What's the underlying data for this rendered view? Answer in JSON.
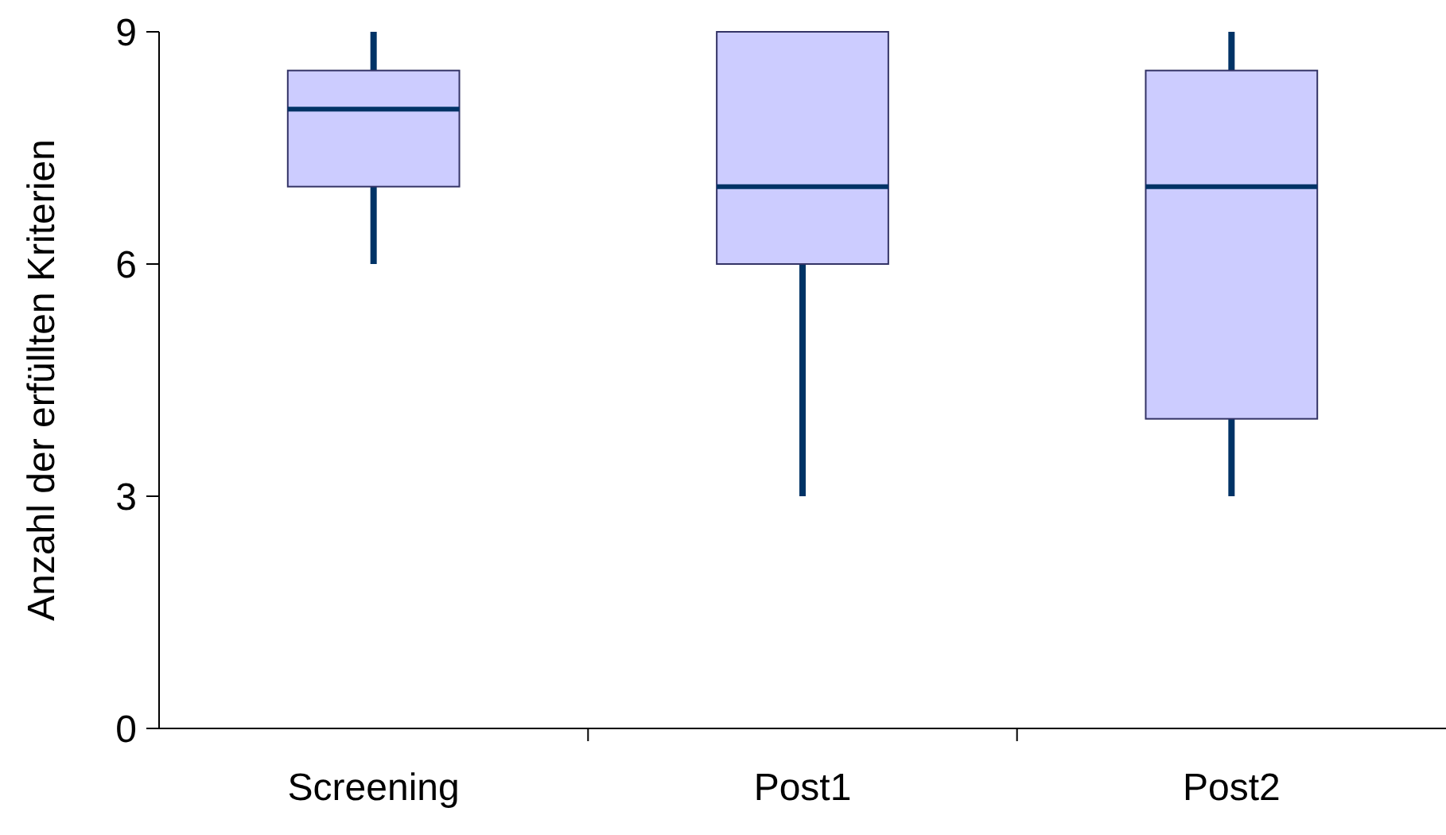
{
  "chart_data": {
    "type": "box",
    "ylabel": "Anzahl der erfüllten Kriterien",
    "categories": [
      "Screening",
      "Post1",
      "Post2"
    ],
    "boxes": [
      {
        "low": 6,
        "q1": 7,
        "median": 8,
        "q3": 8.5,
        "high": 9
      },
      {
        "low": 3,
        "q1": 6,
        "median": 7,
        "q3": 9,
        "high": 9
      },
      {
        "low": 3,
        "q1": 4,
        "median": 7,
        "q3": 8.5,
        "high": 9
      }
    ],
    "color": "#ccccff",
    "ylim": [
      0,
      9
    ],
    "yticks": [
      0,
      3,
      6,
      9
    ],
    "grid": false
  }
}
